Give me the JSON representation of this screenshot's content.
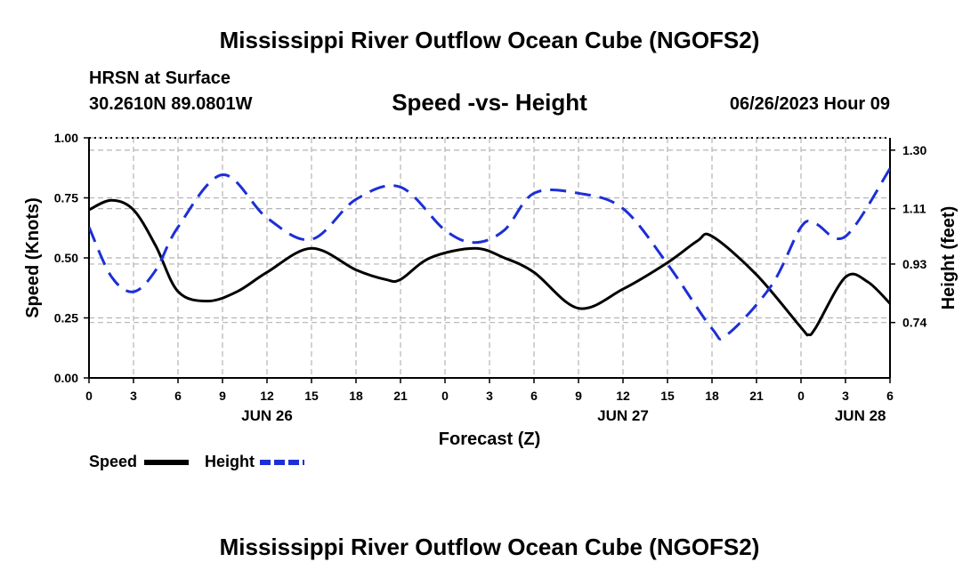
{
  "page": {
    "title": "Mississippi River Outflow Ocean Cube (NGOFS2)",
    "footer_title": "Mississippi River Outflow Ocean Cube (NGOFS2)",
    "station": "HRSN at Surface",
    "coords": "30.2610N  89.0801W",
    "datetime": "06/26/2023 Hour 09"
  },
  "chart_data": {
    "type": "line",
    "title": "Speed -vs- Height",
    "xlabel": "Forecast (Z)",
    "ylabel_left": "Speed (Knots)",
    "ylabel_right": "Height (feet)",
    "x_range": [
      0,
      54
    ],
    "x_ticks": [
      0,
      3,
      6,
      9,
      12,
      15,
      18,
      21,
      24,
      27,
      30,
      33,
      36,
      39,
      42,
      45,
      48,
      51,
      54
    ],
    "x_tick_labels": [
      "0",
      "3",
      "6",
      "9",
      "12",
      "15",
      "18",
      "21",
      "0",
      "3",
      "6",
      "9",
      "12",
      "15",
      "18",
      "21",
      "0",
      "3",
      "6"
    ],
    "day_labels": [
      {
        "x": 12,
        "label": "JUN 26"
      },
      {
        "x": 36,
        "label": "JUN 27"
      },
      {
        "x": 52,
        "label": "JUN 28"
      }
    ],
    "ylim_left": [
      0,
      1
    ],
    "y_ticks_left": [
      0,
      0.25,
      0.5,
      0.75,
      1.0
    ],
    "y_tick_labels_left": [
      "0.00",
      "0.25",
      "0.50",
      "0.75",
      "1.00"
    ],
    "ylim_right": [
      0.56,
      1.34
    ],
    "y_ticks_right": [
      0.74,
      0.93,
      1.11,
      1.3
    ],
    "y_tick_labels_right": [
      "0.74",
      "0.93",
      "1.11",
      "1.30"
    ],
    "grid": true,
    "series": [
      {
        "name": "Speed",
        "axis": "left",
        "color": "#000000",
        "dash": "solid",
        "points": [
          [
            0,
            0.7
          ],
          [
            1.5,
            0.74
          ],
          [
            3,
            0.7
          ],
          [
            4.5,
            0.55
          ],
          [
            6,
            0.36
          ],
          [
            8,
            0.32
          ],
          [
            10,
            0.36
          ],
          [
            12,
            0.44
          ],
          [
            15,
            0.54
          ],
          [
            18,
            0.45
          ],
          [
            20,
            0.41
          ],
          [
            21,
            0.41
          ],
          [
            23,
            0.5
          ],
          [
            26,
            0.54
          ],
          [
            28,
            0.5
          ],
          [
            30,
            0.44
          ],
          [
            33,
            0.29
          ],
          [
            36,
            0.37
          ],
          [
            39,
            0.48
          ],
          [
            41,
            0.57
          ],
          [
            42,
            0.59
          ],
          [
            45,
            0.43
          ],
          [
            48,
            0.21
          ],
          [
            48.5,
            0.18
          ],
          [
            49,
            0.21
          ],
          [
            51,
            0.42
          ],
          [
            52.5,
            0.4
          ],
          [
            54,
            0.31
          ]
        ]
      },
      {
        "name": "Height",
        "axis": "right",
        "color": "#1c2fd6",
        "dash": "dashed",
        "points": [
          [
            0,
            1.05
          ],
          [
            1.5,
            0.89
          ],
          [
            3,
            0.84
          ],
          [
            4.5,
            0.91
          ],
          [
            6,
            1.05
          ],
          [
            9,
            1.22
          ],
          [
            12,
            1.08
          ],
          [
            15,
            1.01
          ],
          [
            18,
            1.14
          ],
          [
            21,
            1.18
          ],
          [
            24,
            1.04
          ],
          [
            26,
            1.0
          ],
          [
            28,
            1.04
          ],
          [
            30,
            1.16
          ],
          [
            33,
            1.16
          ],
          [
            36,
            1.11
          ],
          [
            39,
            0.93
          ],
          [
            42,
            0.72
          ],
          [
            43,
            0.7
          ],
          [
            46,
            0.86
          ],
          [
            48,
            1.05
          ],
          [
            49,
            1.06
          ],
          [
            51,
            1.02
          ],
          [
            54,
            1.24
          ]
        ]
      }
    ],
    "legend": [
      {
        "label": "Speed",
        "color": "#000000"
      },
      {
        "label": "Height",
        "color": "#1c2fd6"
      }
    ]
  }
}
